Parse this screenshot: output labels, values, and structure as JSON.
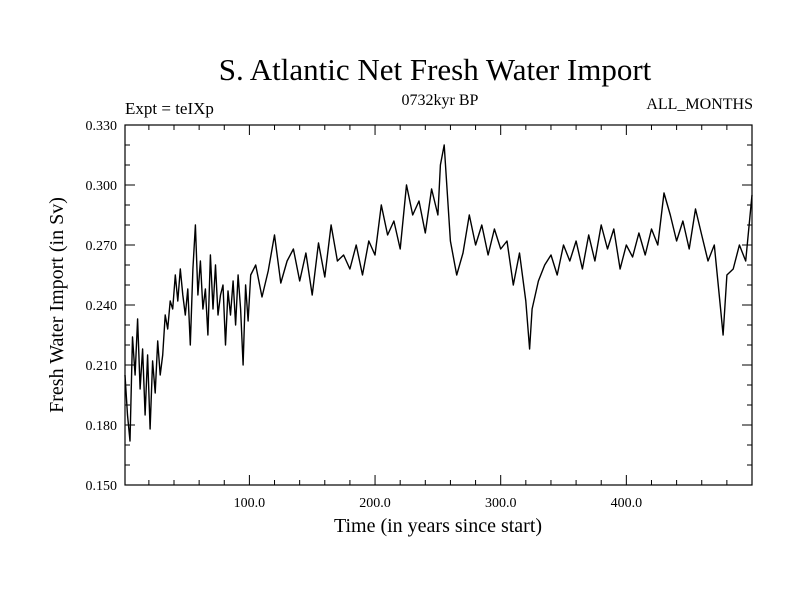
{
  "chart_data": {
    "type": "line",
    "title": "S. Atlantic Net Fresh Water Import",
    "subtitle_left": "Expt = teIXp",
    "subtitle_center": "0732kyr BP",
    "subtitle_right": "ALL_MONTHS",
    "xlabel": "Time (in years since start)",
    "ylabel": "Fresh Water Import (in Sv)",
    "xlim": [
      1,
      500
    ],
    "ylim": [
      0.15,
      0.33
    ],
    "x_tick_labels": [
      "100.0",
      "200.0",
      "300.0",
      "400.0"
    ],
    "x_ticks": [
      100,
      200,
      300,
      400
    ],
    "y_tick_labels": [
      "0.150",
      "0.180",
      "0.210",
      "0.240",
      "0.270",
      "0.300",
      "0.330"
    ],
    "y_ticks": [
      0.15,
      0.18,
      0.21,
      0.24,
      0.27,
      0.3,
      0.33
    ],
    "grid": false,
    "line_color": "#000000",
    "series": [
      {
        "x": [
          1,
          3,
          5,
          7,
          9,
          11,
          13,
          15,
          17,
          19,
          21,
          23,
          25,
          27,
          29,
          31,
          33,
          35,
          37,
          39,
          41,
          43,
          45,
          47,
          49,
          51,
          53,
          55,
          57,
          59,
          61,
          63,
          65,
          67,
          69,
          71,
          73,
          75,
          77,
          79,
          81,
          83,
          85,
          87,
          89,
          91,
          93,
          95,
          97,
          99,
          101,
          105,
          110,
          115,
          120,
          125,
          130,
          135,
          140,
          145,
          150,
          155,
          160,
          165,
          170,
          175,
          180,
          185,
          190,
          195,
          200,
          205,
          210,
          215,
          220,
          225,
          230,
          235,
          240,
          245,
          250,
          252,
          255,
          260,
          265,
          270,
          275,
          280,
          285,
          290,
          295,
          300,
          305,
          310,
          315,
          320,
          323,
          325,
          330,
          335,
          340,
          345,
          350,
          355,
          360,
          365,
          370,
          375,
          380,
          385,
          390,
          395,
          400,
          405,
          410,
          415,
          420,
          425,
          430,
          435,
          440,
          445,
          450,
          455,
          460,
          465,
          470,
          475,
          477,
          480,
          485,
          490,
          495,
          500
        ],
        "y": [
          0.205,
          0.185,
          0.172,
          0.224,
          0.205,
          0.233,
          0.198,
          0.218,
          0.185,
          0.215,
          0.178,
          0.212,
          0.196,
          0.222,
          0.205,
          0.215,
          0.235,
          0.228,
          0.242,
          0.238,
          0.255,
          0.242,
          0.258,
          0.245,
          0.235,
          0.248,
          0.22,
          0.258,
          0.28,
          0.245,
          0.262,
          0.238,
          0.248,
          0.225,
          0.265,
          0.238,
          0.26,
          0.235,
          0.245,
          0.25,
          0.22,
          0.247,
          0.235,
          0.252,
          0.23,
          0.255,
          0.238,
          0.21,
          0.25,
          0.232,
          0.255,
          0.26,
          0.244,
          0.257,
          0.275,
          0.251,
          0.262,
          0.268,
          0.252,
          0.266,
          0.245,
          0.271,
          0.254,
          0.28,
          0.262,
          0.265,
          0.258,
          0.27,
          0.255,
          0.272,
          0.265,
          0.29,
          0.275,
          0.282,
          0.268,
          0.3,
          0.285,
          0.292,
          0.276,
          0.298,
          0.285,
          0.31,
          0.32,
          0.272,
          0.255,
          0.266,
          0.285,
          0.27,
          0.28,
          0.265,
          0.278,
          0.268,
          0.272,
          0.25,
          0.266,
          0.242,
          0.218,
          0.238,
          0.252,
          0.26,
          0.265,
          0.255,
          0.27,
          0.262,
          0.272,
          0.258,
          0.275,
          0.262,
          0.28,
          0.268,
          0.278,
          0.258,
          0.27,
          0.264,
          0.276,
          0.265,
          0.278,
          0.27,
          0.296,
          0.285,
          0.272,
          0.282,
          0.268,
          0.288,
          0.275,
          0.262,
          0.27,
          0.238,
          0.225,
          0.255,
          0.258,
          0.27,
          0.262,
          0.295
        ]
      }
    ]
  }
}
